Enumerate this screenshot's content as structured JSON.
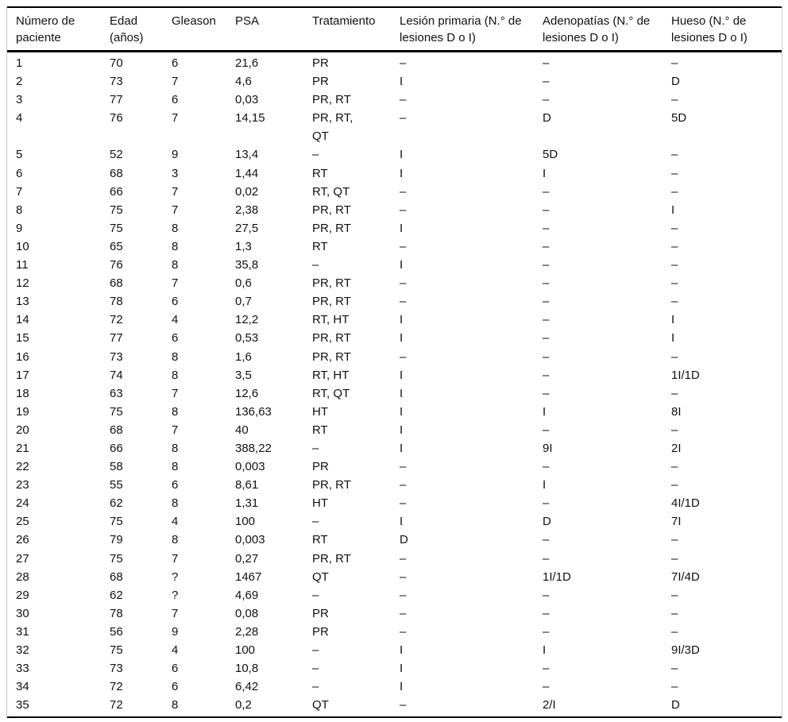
{
  "table": {
    "columns": [
      {
        "key": "paciente",
        "label": "Número de paciente"
      },
      {
        "key": "edad",
        "label": "Edad (años)"
      },
      {
        "key": "gleason",
        "label": "Gleason"
      },
      {
        "key": "psa",
        "label": "PSA"
      },
      {
        "key": "tratamiento",
        "label": "Tratamiento"
      },
      {
        "key": "lesion_primaria",
        "label": "Lesión primaria (N.° de lesiones D o I)"
      },
      {
        "key": "adenopatias",
        "label": "Adenopatías (N.° de lesiones D o I)"
      },
      {
        "key": "hueso",
        "label": "Hueso (N.° de lesiones D o I)"
      }
    ],
    "rows": [
      {
        "paciente": "1",
        "edad": "70",
        "gleason": "6",
        "psa": "21,6",
        "tratamiento": "PR",
        "lesion_primaria": "–",
        "adenopatias": "–",
        "hueso": "–"
      },
      {
        "paciente": "2",
        "edad": "73",
        "gleason": "7",
        "psa": "4,6",
        "tratamiento": "PR",
        "lesion_primaria": "I",
        "adenopatias": "–",
        "hueso": "D"
      },
      {
        "paciente": "3",
        "edad": "77",
        "gleason": "6",
        "psa": "0,03",
        "tratamiento": "PR, RT",
        "lesion_primaria": "–",
        "adenopatias": "–",
        "hueso": "–"
      },
      {
        "paciente": "4",
        "edad": "76",
        "gleason": "7",
        "psa": "14,15",
        "tratamiento": "PR, RT,\nQT",
        "lesion_primaria": "–",
        "adenopatias": "D",
        "hueso": "5D"
      },
      {
        "paciente": "5",
        "edad": "52",
        "gleason": "9",
        "psa": "13,4",
        "tratamiento": "–",
        "lesion_primaria": "I",
        "adenopatias": "5D",
        "hueso": "–"
      },
      {
        "paciente": "6",
        "edad": "68",
        "gleason": "3",
        "psa": "1,44",
        "tratamiento": "RT",
        "lesion_primaria": "I",
        "adenopatias": "I",
        "hueso": "–"
      },
      {
        "paciente": "7",
        "edad": "66",
        "gleason": "7",
        "psa": "0,02",
        "tratamiento": "RT, QT",
        "lesion_primaria": "–",
        "adenopatias": "–",
        "hueso": "–"
      },
      {
        "paciente": "8",
        "edad": "75",
        "gleason": "7",
        "psa": "2,38",
        "tratamiento": "PR, RT",
        "lesion_primaria": "–",
        "adenopatias": "–",
        "hueso": "I"
      },
      {
        "paciente": "9",
        "edad": "75",
        "gleason": "8",
        "psa": "27,5",
        "tratamiento": "PR, RT",
        "lesion_primaria": "I",
        "adenopatias": "–",
        "hueso": "–"
      },
      {
        "paciente": "10",
        "edad": "65",
        "gleason": "8",
        "psa": "1,3",
        "tratamiento": "RT",
        "lesion_primaria": "–",
        "adenopatias": "–",
        "hueso": "–"
      },
      {
        "paciente": "11",
        "edad": "76",
        "gleason": "8",
        "psa": "35,8",
        "tratamiento": "–",
        "lesion_primaria": "I",
        "adenopatias": "–",
        "hueso": "–"
      },
      {
        "paciente": "12",
        "edad": "68",
        "gleason": "7",
        "psa": "0,6",
        "tratamiento": "PR, RT",
        "lesion_primaria": "–",
        "adenopatias": "–",
        "hueso": "–"
      },
      {
        "paciente": "13",
        "edad": "78",
        "gleason": "6",
        "psa": "0,7",
        "tratamiento": "PR, RT",
        "lesion_primaria": "–",
        "adenopatias": "–",
        "hueso": "–"
      },
      {
        "paciente": "14",
        "edad": "72",
        "gleason": "4",
        "psa": "12,2",
        "tratamiento": "RT, HT",
        "lesion_primaria": "I",
        "adenopatias": "–",
        "hueso": "I"
      },
      {
        "paciente": "15",
        "edad": "77",
        "gleason": "6",
        "psa": "0,53",
        "tratamiento": "PR, RT",
        "lesion_primaria": "I",
        "adenopatias": "–",
        "hueso": "I"
      },
      {
        "paciente": "16",
        "edad": "73",
        "gleason": "8",
        "psa": "1,6",
        "tratamiento": "PR, RT",
        "lesion_primaria": "–",
        "adenopatias": "–",
        "hueso": "–"
      },
      {
        "paciente": "17",
        "edad": "74",
        "gleason": "8",
        "psa": "3,5",
        "tratamiento": "RT, HT",
        "lesion_primaria": "I",
        "adenopatias": "–",
        "hueso": "1I/1D"
      },
      {
        "paciente": "18",
        "edad": "63",
        "gleason": "7",
        "psa": "12,6",
        "tratamiento": "RT, QT",
        "lesion_primaria": "I",
        "adenopatias": "–",
        "hueso": "–"
      },
      {
        "paciente": "19",
        "edad": "75",
        "gleason": "8",
        "psa": "136,63",
        "tratamiento": "HT",
        "lesion_primaria": "I",
        "adenopatias": "I",
        "hueso": "8I"
      },
      {
        "paciente": "20",
        "edad": "68",
        "gleason": "7",
        "psa": "40",
        "tratamiento": "RT",
        "lesion_primaria": "I",
        "adenopatias": "–",
        "hueso": "–"
      },
      {
        "paciente": "21",
        "edad": "66",
        "gleason": "8",
        "psa": "388,22",
        "tratamiento": "–",
        "lesion_primaria": "I",
        "adenopatias": "9I",
        "hueso": "2I"
      },
      {
        "paciente": "22",
        "edad": "58",
        "gleason": "8",
        "psa": "0,003",
        "tratamiento": "PR",
        "lesion_primaria": "–",
        "adenopatias": "–",
        "hueso": "–"
      },
      {
        "paciente": "23",
        "edad": "55",
        "gleason": "6",
        "psa": "8,61",
        "tratamiento": "PR, RT",
        "lesion_primaria": "–",
        "adenopatias": "I",
        "hueso": "–"
      },
      {
        "paciente": "24",
        "edad": "62",
        "gleason": "8",
        "psa": "1,31",
        "tratamiento": "HT",
        "lesion_primaria": "–",
        "adenopatias": "–",
        "hueso": "4I/1D"
      },
      {
        "paciente": "25",
        "edad": "75",
        "gleason": "4",
        "psa": "100",
        "tratamiento": "–",
        "lesion_primaria": "I",
        "adenopatias": "D",
        "hueso": "7I"
      },
      {
        "paciente": "26",
        "edad": "79",
        "gleason": "8",
        "psa": "0,003",
        "tratamiento": "RT",
        "lesion_primaria": "D",
        "adenopatias": "–",
        "hueso": "–"
      },
      {
        "paciente": "27",
        "edad": "75",
        "gleason": "7",
        "psa": "0,27",
        "tratamiento": "PR, RT",
        "lesion_primaria": "–",
        "adenopatias": "–",
        "hueso": "–"
      },
      {
        "paciente": "28",
        "edad": "68",
        "gleason": "?",
        "psa": "1467",
        "tratamiento": "QT",
        "lesion_primaria": "–",
        "adenopatias": "1I/1D",
        "hueso": "7I/4D"
      },
      {
        "paciente": "29",
        "edad": "62",
        "gleason": "?",
        "psa": "4,69",
        "tratamiento": "–",
        "lesion_primaria": "–",
        "adenopatias": "–",
        "hueso": "–"
      },
      {
        "paciente": "30",
        "edad": "78",
        "gleason": "7",
        "psa": "0,08",
        "tratamiento": "PR",
        "lesion_primaria": "–",
        "adenopatias": "–",
        "hueso": "–"
      },
      {
        "paciente": "31",
        "edad": "56",
        "gleason": "9",
        "psa": "2,28",
        "tratamiento": "PR",
        "lesion_primaria": "–",
        "adenopatias": "–",
        "hueso": "–"
      },
      {
        "paciente": "32",
        "edad": "75",
        "gleason": "4",
        "psa": "100",
        "tratamiento": "–",
        "lesion_primaria": "I",
        "adenopatias": "I",
        "hueso": "9I/3D"
      },
      {
        "paciente": "33",
        "edad": "73",
        "gleason": "6",
        "psa": "10,8",
        "tratamiento": "–",
        "lesion_primaria": "I",
        "adenopatias": "–",
        "hueso": "–"
      },
      {
        "paciente": "34",
        "edad": "72",
        "gleason": "6",
        "psa": "6,42",
        "tratamiento": "–",
        "lesion_primaria": "I",
        "adenopatias": "–",
        "hueso": "–"
      },
      {
        "paciente": "35",
        "edad": "72",
        "gleason": "8",
        "psa": "0,2",
        "tratamiento": "QT",
        "lesion_primaria": "–",
        "adenopatias": "2/I",
        "hueso": "D"
      }
    ]
  }
}
